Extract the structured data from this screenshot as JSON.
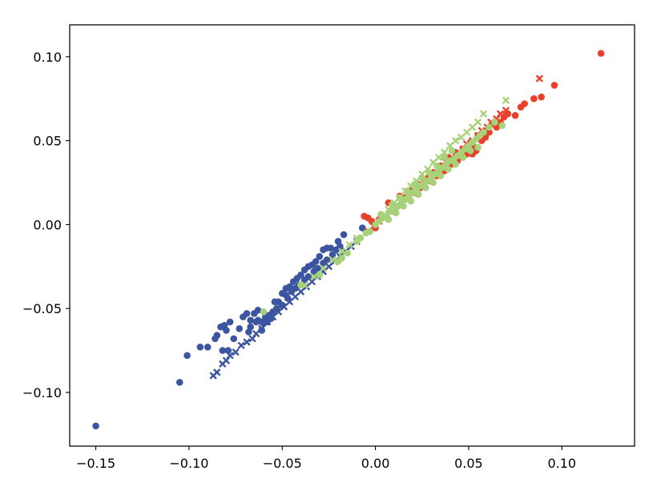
{
  "chart_data": {
    "type": "scatter",
    "title": "",
    "xlabel": "",
    "ylabel": "",
    "xlim": [
      -0.164,
      0.139
    ],
    "ylim": [
      -0.132,
      0.119
    ],
    "xticks": [
      -0.15,
      -0.1,
      -0.05,
      0.0,
      0.05,
      0.1
    ],
    "xtick_labels": [
      "−0.15",
      "−0.10",
      "−0.05",
      "0.00",
      "0.05",
      "0.10"
    ],
    "yticks": [
      -0.1,
      -0.05,
      0.0,
      0.05,
      0.1
    ],
    "ytick_labels": [
      "−0.10",
      "−0.05",
      "0.00",
      "0.05",
      "0.10"
    ],
    "grid": false,
    "legend": "none",
    "series": [
      {
        "color": "#3c55a0",
        "marker": "circle",
        "points": [
          [
            -0.15,
            -0.12
          ],
          [
            -0.105,
            -0.094
          ],
          [
            -0.101,
            -0.078
          ],
          [
            -0.094,
            -0.073
          ],
          [
            -0.09,
            -0.073
          ],
          [
            -0.086,
            -0.068
          ],
          [
            -0.085,
            -0.066
          ],
          [
            -0.083,
            -0.061
          ],
          [
            -0.081,
            -0.06
          ],
          [
            -0.078,
            -0.058
          ],
          [
            -0.08,
            -0.063
          ],
          [
            -0.082,
            -0.075
          ],
          [
            -0.079,
            -0.075
          ],
          [
            -0.076,
            -0.068
          ],
          [
            -0.073,
            -0.062
          ],
          [
            -0.071,
            -0.055
          ],
          [
            -0.069,
            -0.053
          ],
          [
            -0.067,
            -0.057
          ],
          [
            -0.065,
            -0.053
          ],
          [
            -0.063,
            -0.051
          ],
          [
            -0.061,
            -0.058
          ],
          [
            -0.059,
            -0.055
          ],
          [
            -0.057,
            -0.054
          ],
          [
            -0.055,
            -0.052
          ],
          [
            -0.054,
            -0.046
          ],
          [
            -0.052,
            -0.046
          ],
          [
            -0.05,
            -0.041
          ],
          [
            -0.048,
            -0.038
          ],
          [
            -0.046,
            -0.037
          ],
          [
            -0.044,
            -0.034
          ],
          [
            -0.042,
            -0.032
          ],
          [
            -0.04,
            -0.03
          ],
          [
            -0.038,
            -0.027
          ],
          [
            -0.036,
            -0.025
          ],
          [
            -0.034,
            -0.024
          ],
          [
            -0.032,
            -0.022
          ],
          [
            -0.03,
            -0.019
          ],
          [
            -0.028,
            -0.015
          ],
          [
            -0.026,
            -0.014
          ],
          [
            -0.024,
            -0.014
          ],
          [
            -0.02,
            -0.01
          ],
          [
            -0.017,
            -0.006
          ],
          [
            -0.048,
            -0.042
          ],
          [
            -0.045,
            -0.04
          ],
          [
            -0.043,
            -0.038
          ],
          [
            -0.041,
            -0.036
          ],
          [
            -0.038,
            -0.033
          ],
          [
            -0.036,
            -0.031
          ],
          [
            -0.033,
            -0.028
          ],
          [
            -0.031,
            -0.026
          ],
          [
            -0.028,
            -0.023
          ],
          [
            -0.026,
            -0.021
          ],
          [
            -0.023,
            -0.018
          ],
          [
            -0.021,
            -0.015
          ],
          [
            -0.019,
            -0.013
          ],
          [
            -0.061,
            -0.063
          ],
          [
            -0.058,
            -0.058
          ],
          [
            -0.056,
            -0.056
          ],
          [
            -0.064,
            -0.058
          ],
          [
            -0.067,
            -0.061
          ],
          [
            -0.068,
            -0.064
          ],
          [
            -0.063,
            -0.057
          ],
          [
            -0.06,
            -0.059
          ],
          [
            -0.053,
            -0.05
          ],
          [
            -0.05,
            -0.048
          ],
          [
            -0.047,
            -0.044
          ],
          [
            -0.003,
            -0.004
          ],
          [
            -0.007,
            -0.002
          ],
          [
            0.01,
            0.008
          ],
          [
            0.012,
            0.011
          ]
        ]
      },
      {
        "color": "#3c55a0",
        "marker": "x",
        "points": [
          [
            -0.087,
            -0.09
          ],
          [
            -0.085,
            -0.088
          ],
          [
            -0.082,
            -0.083
          ],
          [
            -0.08,
            -0.081
          ],
          [
            -0.078,
            -0.078
          ],
          [
            -0.075,
            -0.076
          ],
          [
            -0.072,
            -0.072
          ],
          [
            -0.069,
            -0.07
          ],
          [
            -0.066,
            -0.068
          ],
          [
            -0.064,
            -0.065
          ],
          [
            -0.061,
            -0.062
          ],
          [
            -0.058,
            -0.058
          ],
          [
            -0.055,
            -0.055
          ],
          [
            -0.052,
            -0.052
          ],
          [
            -0.049,
            -0.049
          ],
          [
            -0.046,
            -0.046
          ],
          [
            -0.043,
            -0.043
          ],
          [
            -0.04,
            -0.04
          ],
          [
            -0.037,
            -0.037
          ],
          [
            -0.034,
            -0.034
          ],
          [
            -0.031,
            -0.031
          ],
          [
            -0.028,
            -0.028
          ],
          [
            -0.025,
            -0.025
          ],
          [
            -0.022,
            -0.022
          ],
          [
            -0.019,
            -0.019
          ],
          [
            -0.016,
            -0.016
          ],
          [
            -0.013,
            -0.013
          ],
          [
            -0.01,
            -0.01
          ]
        ]
      },
      {
        "color": "#e8402a",
        "marker": "circle",
        "points": [
          [
            0.121,
            0.102
          ],
          [
            0.096,
            0.083
          ],
          [
            0.089,
            0.076
          ],
          [
            0.085,
            0.075
          ],
          [
            0.08,
            0.072
          ],
          [
            0.078,
            0.07
          ],
          [
            0.075,
            0.065
          ],
          [
            0.071,
            0.066
          ],
          [
            0.069,
            0.064
          ],
          [
            0.067,
            0.061
          ],
          [
            0.065,
            0.058
          ],
          [
            0.063,
            0.06
          ],
          [
            0.061,
            0.055
          ],
          [
            0.059,
            0.052
          ],
          [
            0.057,
            0.05
          ],
          [
            0.055,
            0.053
          ],
          [
            0.053,
            0.046
          ],
          [
            0.051,
            0.049
          ],
          [
            0.049,
            0.042
          ],
          [
            0.047,
            0.045
          ],
          [
            0.045,
            0.04
          ],
          [
            0.043,
            0.043
          ],
          [
            0.041,
            0.036
          ],
          [
            0.039,
            0.04
          ],
          [
            0.037,
            0.032
          ],
          [
            0.035,
            0.035
          ],
          [
            0.033,
            0.029
          ],
          [
            0.031,
            0.031
          ],
          [
            0.029,
            0.026
          ],
          [
            0.027,
            0.027
          ],
          [
            0.025,
            0.023
          ],
          [
            0.023,
            0.024
          ],
          [
            0.021,
            0.019
          ],
          [
            0.019,
            0.021
          ],
          [
            0.016,
            0.016
          ],
          [
            0.013,
            0.017
          ],
          [
            0.01,
            0.011
          ],
          [
            0.007,
            0.013
          ],
          [
            0.003,
            0.006
          ],
          [
            -0.006,
            0.005
          ],
          [
            -0.004,
            0.004
          ],
          [
            -0.002,
            0.002
          ],
          [
            0.0,
            -0.002
          ],
          [
            0.002,
            0.003
          ],
          [
            0.052,
            0.042
          ],
          [
            0.054,
            0.044
          ],
          [
            0.044,
            0.038
          ],
          [
            0.036,
            0.033
          ],
          [
            0.03,
            0.028
          ],
          [
            0.024,
            0.022
          ]
        ]
      },
      {
        "color": "#e8402a",
        "marker": "x",
        "points": [
          [
            0.088,
            0.087
          ],
          [
            0.07,
            0.068
          ],
          [
            0.067,
            0.066
          ],
          [
            0.065,
            0.063
          ],
          [
            0.062,
            0.061
          ],
          [
            0.06,
            0.058
          ],
          [
            0.057,
            0.056
          ],
          [
            0.055,
            0.053
          ],
          [
            0.052,
            0.05
          ],
          [
            0.049,
            0.048
          ],
          [
            0.047,
            0.045
          ],
          [
            0.044,
            0.042
          ],
          [
            0.041,
            0.04
          ],
          [
            0.038,
            0.037
          ],
          [
            0.035,
            0.034
          ],
          [
            0.032,
            0.031
          ],
          [
            0.029,
            0.028
          ],
          [
            0.026,
            0.025
          ],
          [
            0.023,
            0.022
          ],
          [
            0.02,
            0.019
          ],
          [
            0.017,
            0.016
          ],
          [
            0.014,
            0.014
          ],
          [
            0.011,
            0.011
          ],
          [
            0.008,
            0.008
          ],
          [
            0.005,
            0.005
          ],
          [
            0.002,
            0.002
          ],
          [
            -0.001,
            -0.001
          ],
          [
            -0.004,
            -0.004
          ]
        ]
      },
      {
        "color": "#a8d27a",
        "marker": "circle",
        "points": [
          [
            -0.06,
            -0.052
          ],
          [
            -0.04,
            -0.036
          ],
          [
            -0.03,
            -0.03
          ],
          [
            -0.02,
            -0.022
          ],
          [
            -0.018,
            -0.02
          ],
          [
            -0.015,
            -0.017
          ],
          [
            -0.01,
            -0.01
          ],
          [
            -0.008,
            -0.008
          ],
          [
            -0.005,
            -0.005
          ],
          [
            -0.003,
            -0.004
          ],
          [
            0.0,
            0.0
          ],
          [
            0.002,
            0.002
          ],
          [
            0.004,
            0.004
          ],
          [
            0.006,
            0.005
          ],
          [
            0.008,
            0.008
          ],
          [
            0.01,
            0.01
          ],
          [
            0.012,
            0.011
          ],
          [
            0.014,
            0.013
          ],
          [
            0.016,
            0.015
          ],
          [
            0.018,
            0.017
          ],
          [
            0.02,
            0.019
          ],
          [
            0.022,
            0.021
          ],
          [
            0.024,
            0.023
          ],
          [
            0.026,
            0.024
          ],
          [
            0.028,
            0.026
          ],
          [
            0.03,
            0.028
          ],
          [
            0.032,
            0.03
          ],
          [
            0.034,
            0.032
          ],
          [
            0.036,
            0.034
          ],
          [
            0.038,
            0.036
          ],
          [
            0.04,
            0.038
          ],
          [
            0.042,
            0.039
          ],
          [
            0.044,
            0.041
          ],
          [
            0.046,
            0.043
          ],
          [
            0.048,
            0.045
          ],
          [
            0.05,
            0.047
          ],
          [
            0.052,
            0.049
          ],
          [
            0.054,
            0.051
          ],
          [
            0.056,
            0.053
          ],
          [
            0.058,
            0.055
          ],
          [
            0.061,
            0.058
          ],
          [
            0.064,
            0.061
          ],
          [
            0.068,
            0.059
          ],
          [
            0.007,
            0.003
          ],
          [
            0.011,
            0.007
          ],
          [
            0.015,
            0.011
          ],
          [
            0.019,
            0.014
          ],
          [
            0.023,
            0.018
          ],
          [
            0.027,
            0.022
          ],
          [
            0.031,
            0.025
          ],
          [
            0.035,
            0.029
          ],
          [
            0.039,
            0.033
          ],
          [
            0.043,
            0.036
          ],
          [
            0.047,
            0.04
          ],
          [
            0.051,
            0.044
          ],
          [
            0.055,
            0.046
          ],
          [
            0.003,
            0.006
          ],
          [
            0.009,
            0.012
          ],
          [
            0.013,
            0.016
          ],
          [
            0.017,
            0.02
          ],
          [
            0.021,
            0.024
          ],
          [
            0.025,
            0.028
          ],
          [
            0.029,
            0.031
          ],
          [
            0.033,
            0.035
          ],
          [
            0.037,
            0.04
          ],
          [
            0.041,
            0.044
          ]
        ]
      },
      {
        "color": "#a8d27a",
        "marker": "x",
        "points": [
          [
            0.07,
            0.074
          ],
          [
            0.058,
            0.066
          ],
          [
            0.055,
            0.061
          ],
          [
            0.052,
            0.058
          ],
          [
            0.049,
            0.055
          ],
          [
            0.046,
            0.052
          ],
          [
            0.043,
            0.05
          ],
          [
            0.04,
            0.047
          ],
          [
            0.037,
            0.043
          ],
          [
            0.034,
            0.04
          ],
          [
            0.031,
            0.037
          ],
          [
            0.028,
            0.033
          ],
          [
            0.025,
            0.03
          ],
          [
            0.022,
            0.026
          ],
          [
            0.019,
            0.023
          ],
          [
            0.016,
            0.02
          ],
          [
            0.013,
            0.016
          ],
          [
            0.01,
            0.013
          ],
          [
            0.007,
            0.009
          ],
          [
            -0.01,
            -0.008
          ],
          [
            -0.014,
            -0.012
          ],
          [
            -0.018,
            -0.016
          ],
          [
            -0.023,
            -0.021
          ],
          [
            -0.028,
            -0.026
          ],
          [
            -0.033,
            -0.031
          ],
          [
            -0.038,
            -0.036
          ]
        ]
      }
    ]
  }
}
